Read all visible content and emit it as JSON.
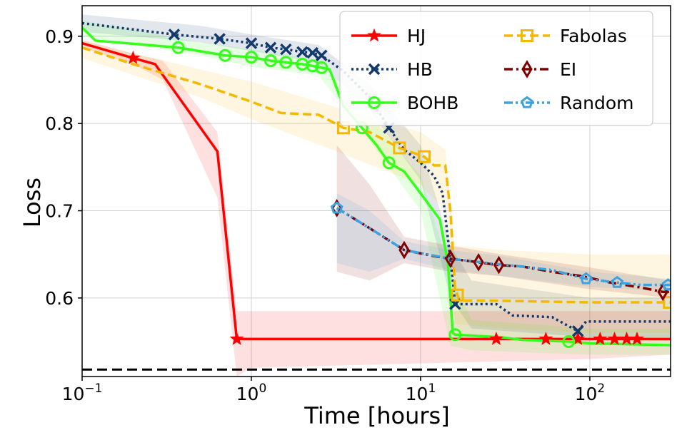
{
  "chart_data": {
    "type": "line",
    "xlabel": "Time [hours]",
    "ylabel": "Loss",
    "xscale": "log",
    "xlim": [
      0.1,
      300
    ],
    "ylim": [
      0.51,
      0.935
    ],
    "grid": true,
    "legend_placement": "top-right",
    "x_ticks": [
      {
        "value": 0.1,
        "base": "10",
        "exp": "−1"
      },
      {
        "value": 1,
        "base": "10",
        "exp": "0"
      },
      {
        "value": 10,
        "base": "10",
        "exp": "1"
      },
      {
        "value": 100,
        "base": "10",
        "exp": "2"
      }
    ],
    "y_ticks": [
      {
        "value": 0.6,
        "label": "0.6"
      },
      {
        "value": 0.7,
        "label": "0.7"
      },
      {
        "value": 0.8,
        "label": "0.8"
      },
      {
        "value": 0.9,
        "label": "0.9"
      }
    ],
    "reference_line": {
      "y": 0.518,
      "color": "#000000",
      "style": "dashed"
    },
    "series": [
      {
        "name": "HJ",
        "color": "#ff0000",
        "dash": "solid",
        "marker": "star",
        "x": [
          0.1,
          0.2,
          0.27,
          0.63,
          0.82,
          1,
          10,
          28,
          55,
          85,
          115,
          140,
          165,
          190,
          300
        ],
        "y": [
          0.892,
          0.875,
          0.868,
          0.768,
          0.553,
          0.553,
          0.553,
          0.553,
          0.553,
          0.553,
          0.553,
          0.553,
          0.553,
          0.553,
          0.553
        ],
        "markers_x": [
          0.2,
          0.82,
          28,
          55,
          85,
          115,
          140,
          165,
          190
        ],
        "band": {
          "x": [
            0.1,
            0.2,
            0.3,
            0.63,
            0.82,
            1,
            10,
            100,
            300
          ],
          "lower": [
            0.887,
            0.868,
            0.85,
            0.715,
            0.51,
            0.52,
            0.525,
            0.53,
            0.535
          ],
          "upper": [
            0.896,
            0.88,
            0.872,
            0.79,
            0.585,
            0.585,
            0.585,
            0.585,
            0.585
          ]
        }
      },
      {
        "name": "HB",
        "color": "#133a6d",
        "dash": "dotted",
        "marker": "x",
        "x": [
          0.1,
          0.35,
          0.65,
          1.0,
          1.3,
          1.6,
          2.0,
          2.3,
          2.6,
          3.5,
          5.0,
          6.5,
          8.0,
          10,
          12,
          13.5,
          15.5,
          16,
          28,
          35,
          60,
          85,
          95,
          300
        ],
        "y": [
          0.915,
          0.902,
          0.897,
          0.892,
          0.887,
          0.885,
          0.882,
          0.881,
          0.878,
          0.86,
          0.83,
          0.795,
          0.77,
          0.755,
          0.74,
          0.72,
          0.62,
          0.593,
          0.593,
          0.58,
          0.578,
          0.562,
          0.573,
          0.573
        ],
        "markers_x": [
          0.35,
          0.65,
          1.0,
          1.3,
          1.6,
          2.0,
          2.3,
          2.6,
          6.5,
          16,
          85
        ],
        "band": {
          "x": [
            0.1,
            0.5,
            1,
            2.5,
            5,
            10,
            15,
            20,
            100,
            300
          ],
          "lower": [
            0.905,
            0.893,
            0.883,
            0.87,
            0.815,
            0.735,
            0.6,
            0.565,
            0.555,
            0.555
          ],
          "upper": [
            0.925,
            0.912,
            0.902,
            0.89,
            0.845,
            0.775,
            0.66,
            0.62,
            0.6,
            0.6
          ]
        }
      },
      {
        "name": "BOHB",
        "color": "#33ff19",
        "dash": "solid",
        "marker": "circle",
        "x": [
          0.1,
          0.12,
          0.37,
          0.7,
          1.0,
          1.3,
          1.6,
          2.0,
          2.3,
          2.6,
          2.9,
          3.5,
          4.5,
          5.5,
          6.5,
          8,
          10,
          13,
          14.5,
          15.5,
          16,
          30,
          40,
          75,
          100,
          300
        ],
        "y": [
          0.91,
          0.895,
          0.887,
          0.878,
          0.876,
          0.872,
          0.87,
          0.868,
          0.866,
          0.864,
          0.862,
          0.82,
          0.795,
          0.775,
          0.755,
          0.745,
          0.72,
          0.69,
          0.64,
          0.56,
          0.558,
          0.555,
          0.552,
          0.55,
          0.548,
          0.546
        ],
        "markers_x": [
          0.37,
          0.7,
          1.0,
          1.3,
          1.6,
          2.0,
          2.3,
          2.6,
          4.5,
          6.5,
          16,
          75
        ],
        "band": {
          "x": [
            0.1,
            0.5,
            1,
            2.5,
            5,
            10,
            15,
            20,
            100,
            300
          ],
          "lower": [
            0.9,
            0.878,
            0.865,
            0.855,
            0.78,
            0.7,
            0.545,
            0.54,
            0.535,
            0.535
          ],
          "upper": [
            0.918,
            0.893,
            0.885,
            0.873,
            0.81,
            0.74,
            0.63,
            0.575,
            0.565,
            0.565
          ]
        }
      },
      {
        "name": "Fabolas",
        "color": "#f5b800",
        "dash": "dashed",
        "marker": "square",
        "x": [
          0.1,
          0.2,
          0.5,
          1.0,
          1.5,
          2.5,
          3.5,
          5.0,
          7.5,
          10.5,
          12,
          14,
          15,
          16,
          17,
          25,
          50,
          100,
          300
        ],
        "y": [
          0.887,
          0.868,
          0.845,
          0.825,
          0.812,
          0.81,
          0.795,
          0.79,
          0.772,
          0.762,
          0.752,
          0.752,
          0.7,
          0.61,
          0.597,
          0.597,
          0.596,
          0.595,
          0.595
        ],
        "markers_x": [
          3.5,
          7.5,
          10.5,
          16.5,
          295
        ],
        "band": {
          "x": [
            0.1,
            0.5,
            1,
            3,
            10,
            14,
            16,
            30,
            100,
            300
          ],
          "lower": [
            0.875,
            0.83,
            0.805,
            0.77,
            0.73,
            0.7,
            0.57,
            0.565,
            0.56,
            0.56
          ],
          "upper": [
            0.895,
            0.862,
            0.848,
            0.82,
            0.79,
            0.77,
            0.66,
            0.655,
            0.65,
            0.65
          ]
        }
      },
      {
        "name": "EI",
        "color": "#800000",
        "dash": "dashdot",
        "marker": "diamond",
        "x": [
          3.2,
          5,
          8,
          12,
          15,
          20,
          28,
          40,
          60,
          90,
          130,
          200,
          270,
          300
        ],
        "y": [
          0.703,
          0.68,
          0.655,
          0.648,
          0.645,
          0.642,
          0.638,
          0.636,
          0.63,
          0.625,
          0.618,
          0.612,
          0.607,
          0.607
        ],
        "markers_x": [
          3.2,
          8,
          15,
          22,
          29,
          270
        ],
        "band": {
          "x": [
            3.2,
            5,
            8,
            15,
            30,
            100,
            300
          ],
          "lower": [
            0.63,
            0.62,
            0.64,
            0.63,
            0.625,
            0.61,
            0.6
          ],
          "upper": [
            0.775,
            0.73,
            0.67,
            0.66,
            0.65,
            0.635,
            0.62
          ]
        }
      },
      {
        "name": "Random",
        "color": "#3fa2e0",
        "dash": "dashdotdot",
        "marker": "pentagon",
        "x": [
          3.2,
          5,
          8,
          15,
          25,
          40,
          60,
          95,
          140,
          200,
          300
        ],
        "y": [
          0.703,
          0.68,
          0.655,
          0.645,
          0.64,
          0.636,
          0.632,
          0.622,
          0.618,
          0.615,
          0.615
        ],
        "markers_x": [
          3.2,
          95,
          145,
          290
        ],
        "band": {
          "x": [
            3.2,
            5,
            8,
            15,
            30,
            100,
            300
          ],
          "lower": [
            0.64,
            0.63,
            0.645,
            0.632,
            0.625,
            0.613,
            0.607
          ],
          "upper": [
            0.72,
            0.7,
            0.665,
            0.655,
            0.648,
            0.63,
            0.622
          ]
        }
      }
    ]
  }
}
